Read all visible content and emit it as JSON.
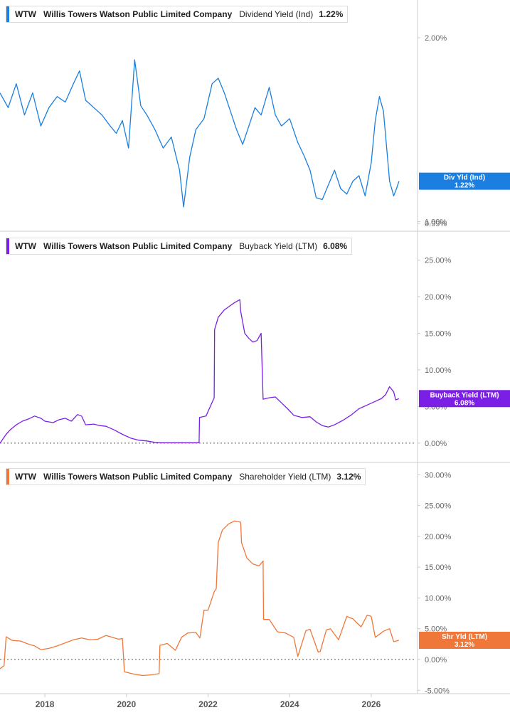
{
  "colors": {
    "dividend": "#1a7fe0",
    "buyback": "#7b1fe6",
    "shareholder": "#f0773a",
    "axis": "#cccccc",
    "zero_line": "#555555"
  },
  "x_axis": {
    "ticks": [
      "2018",
      "2020",
      "2022",
      "2024",
      "2026"
    ],
    "range": [
      2016.9,
      2027.1
    ]
  },
  "chart_data": [
    {
      "type": "line",
      "ticker": "WTW",
      "company": "Willis Towers Watson Public Limited Company",
      "metric": "Dividend Yield (Ind)",
      "value_label": "1.22%",
      "tag_label": "Div Yld (Ind)",
      "tag_value": "1.22%",
      "y_ticks": [
        "2.00%",
        "0.99%",
        "1.00%"
      ],
      "ylim": [
        0.975,
        2.12
      ],
      "baseline": null,
      "x": [
        2016.9,
        2017.1,
        2017.3,
        2017.5,
        2017.7,
        2017.9,
        2018.1,
        2018.3,
        2018.5,
        2018.7,
        2018.85,
        2019.0,
        2019.2,
        2019.4,
        2019.6,
        2019.75,
        2019.9,
        2020.05,
        2020.2,
        2020.35,
        2020.5,
        2020.7,
        2020.9,
        2021.1,
        2021.3,
        2021.4,
        2021.55,
        2021.7,
        2021.9,
        2022.1,
        2022.25,
        2022.4,
        2022.55,
        2022.7,
        2022.85,
        2023.0,
        2023.15,
        2023.3,
        2023.5,
        2023.65,
        2023.8,
        2024.0,
        2024.2,
        2024.35,
        2024.5,
        2024.65,
        2024.8,
        2024.95,
        2025.1,
        2025.25,
        2025.4,
        2025.55,
        2025.7,
        2025.85,
        2026.0,
        2026.1,
        2026.2,
        2026.3,
        2026.45,
        2026.55,
        2026.62,
        2026.68
      ],
      "y": [
        1.7,
        1.62,
        1.75,
        1.58,
        1.7,
        1.52,
        1.62,
        1.68,
        1.65,
        1.75,
        1.82,
        1.66,
        1.62,
        1.58,
        1.52,
        1.48,
        1.55,
        1.4,
        1.88,
        1.63,
        1.58,
        1.5,
        1.4,
        1.46,
        1.28,
        1.08,
        1.35,
        1.5,
        1.56,
        1.75,
        1.78,
        1.7,
        1.6,
        1.5,
        1.42,
        1.52,
        1.62,
        1.58,
        1.73,
        1.58,
        1.52,
        1.56,
        1.43,
        1.36,
        1.28,
        1.13,
        1.12,
        1.2,
        1.28,
        1.18,
        1.15,
        1.22,
        1.25,
        1.14,
        1.32,
        1.55,
        1.68,
        1.6,
        1.22,
        1.14,
        1.18,
        1.22
      ]
    },
    {
      "type": "line",
      "ticker": "WTW",
      "company": "Willis Towers Watson Public Limited Company",
      "metric": "Buyback Yield (LTM)",
      "value_label": "6.08%",
      "tag_label": "Buyback Yield (LTM)",
      "tag_value": "6.08%",
      "y_ticks": [
        "25.00%",
        "20.00%",
        "15.00%",
        "10.00%",
        "5.00%",
        "0.00%"
      ],
      "ylim": [
        -0.5,
        27
      ],
      "baseline": 0,
      "x": [
        2016.9,
        2017.05,
        2017.15,
        2017.3,
        2017.45,
        2017.6,
        2017.75,
        2017.9,
        2018.0,
        2018.2,
        2018.35,
        2018.5,
        2018.65,
        2018.8,
        2018.9,
        2019.0,
        2019.2,
        2019.35,
        2019.5,
        2019.7,
        2019.9,
        2020.1,
        2020.3,
        2020.5,
        2020.7,
        2020.85,
        2021.0,
        2021.3,
        2021.6,
        2021.78,
        2021.79,
        2021.95,
        2022.15,
        2022.16,
        2022.25,
        2022.4,
        2022.55,
        2022.65,
        2022.78,
        2022.8,
        2022.9,
        2023.0,
        2023.1,
        2023.2,
        2023.3,
        2023.35,
        2023.5,
        2023.65,
        2023.8,
        2023.95,
        2024.1,
        2024.3,
        2024.5,
        2024.65,
        2024.8,
        2024.95,
        2025.1,
        2025.3,
        2025.5,
        2025.7,
        2025.9,
        2026.1,
        2026.25,
        2026.35,
        2026.45,
        2026.55,
        2026.6,
        2026.68
      ],
      "y": [
        0.0,
        1.2,
        1.8,
        2.5,
        3.0,
        3.3,
        3.7,
        3.4,
        3.0,
        2.8,
        3.2,
        3.4,
        3.0,
        3.9,
        3.7,
        2.5,
        2.6,
        2.4,
        2.3,
        1.8,
        1.2,
        0.7,
        0.4,
        0.3,
        0.1,
        0.05,
        0.05,
        0.05,
        0.05,
        0.05,
        3.5,
        3.7,
        6.2,
        15.5,
        17.2,
        18.2,
        18.8,
        19.2,
        19.6,
        18.0,
        15.0,
        14.3,
        13.8,
        14.0,
        15.0,
        6.0,
        6.2,
        6.3,
        5.5,
        4.7,
        3.8,
        3.5,
        3.6,
        2.9,
        2.4,
        2.2,
        2.5,
        3.1,
        3.8,
        4.7,
        5.2,
        5.7,
        6.1,
        6.6,
        7.7,
        7.0,
        5.9,
        6.08
      ]
    },
    {
      "type": "line",
      "ticker": "WTW",
      "company": "Willis Towers Watson Public Limited Company",
      "metric": "Shareholder Yield (LTM)",
      "value_label": "3.12%",
      "tag_label": "Shr Yld (LTM)",
      "tag_value": "3.12%",
      "y_ticks": [
        "30.00%",
        "25.00%",
        "20.00%",
        "15.00%",
        "10.00%",
        "5.00%",
        "0.00%",
        "-5.00%"
      ],
      "ylim": [
        -5.2,
        30.5
      ],
      "baseline": 0,
      "x": [
        2016.9,
        2017.0,
        2017.05,
        2017.2,
        2017.4,
        2017.6,
        2017.75,
        2017.9,
        2018.1,
        2018.3,
        2018.5,
        2018.7,
        2018.9,
        2019.1,
        2019.3,
        2019.5,
        2019.65,
        2019.8,
        2019.9,
        2019.95,
        2020.2,
        2020.4,
        2020.6,
        2020.8,
        2020.82,
        2021.0,
        2021.2,
        2021.35,
        2021.5,
        2021.7,
        2021.8,
        2021.9,
        2022.0,
        2022.15,
        2022.2,
        2022.25,
        2022.35,
        2022.5,
        2022.65,
        2022.8,
        2022.82,
        2022.95,
        2023.1,
        2023.25,
        2023.35,
        2023.36,
        2023.5,
        2023.7,
        2023.9,
        2024.1,
        2024.2,
        2024.4,
        2024.5,
        2024.7,
        2024.75,
        2024.9,
        2025.0,
        2025.2,
        2025.4,
        2025.55,
        2025.75,
        2025.9,
        2026.0,
        2026.1,
        2026.3,
        2026.45,
        2026.55,
        2026.68
      ],
      "y": [
        -1.5,
        -1.0,
        3.7,
        3.1,
        3.0,
        2.5,
        2.2,
        1.6,
        1.8,
        2.2,
        2.7,
        3.2,
        3.5,
        3.2,
        3.3,
        3.9,
        3.6,
        3.3,
        3.4,
        -2.0,
        -2.4,
        -2.6,
        -2.5,
        -2.3,
        2.3,
        2.6,
        1.5,
        3.6,
        4.3,
        4.4,
        3.5,
        8.0,
        8.0,
        11.0,
        11.5,
        19.0,
        21.0,
        22.0,
        22.5,
        22.3,
        19.0,
        16.5,
        15.5,
        15.2,
        16.0,
        6.5,
        6.5,
        4.5,
        4.3,
        3.6,
        0.5,
        4.7,
        4.9,
        1.2,
        1.3,
        4.8,
        5.0,
        3.2,
        7.0,
        6.6,
        5.3,
        7.2,
        7.0,
        3.6,
        4.6,
        5.0,
        2.9,
        3.12
      ]
    }
  ]
}
